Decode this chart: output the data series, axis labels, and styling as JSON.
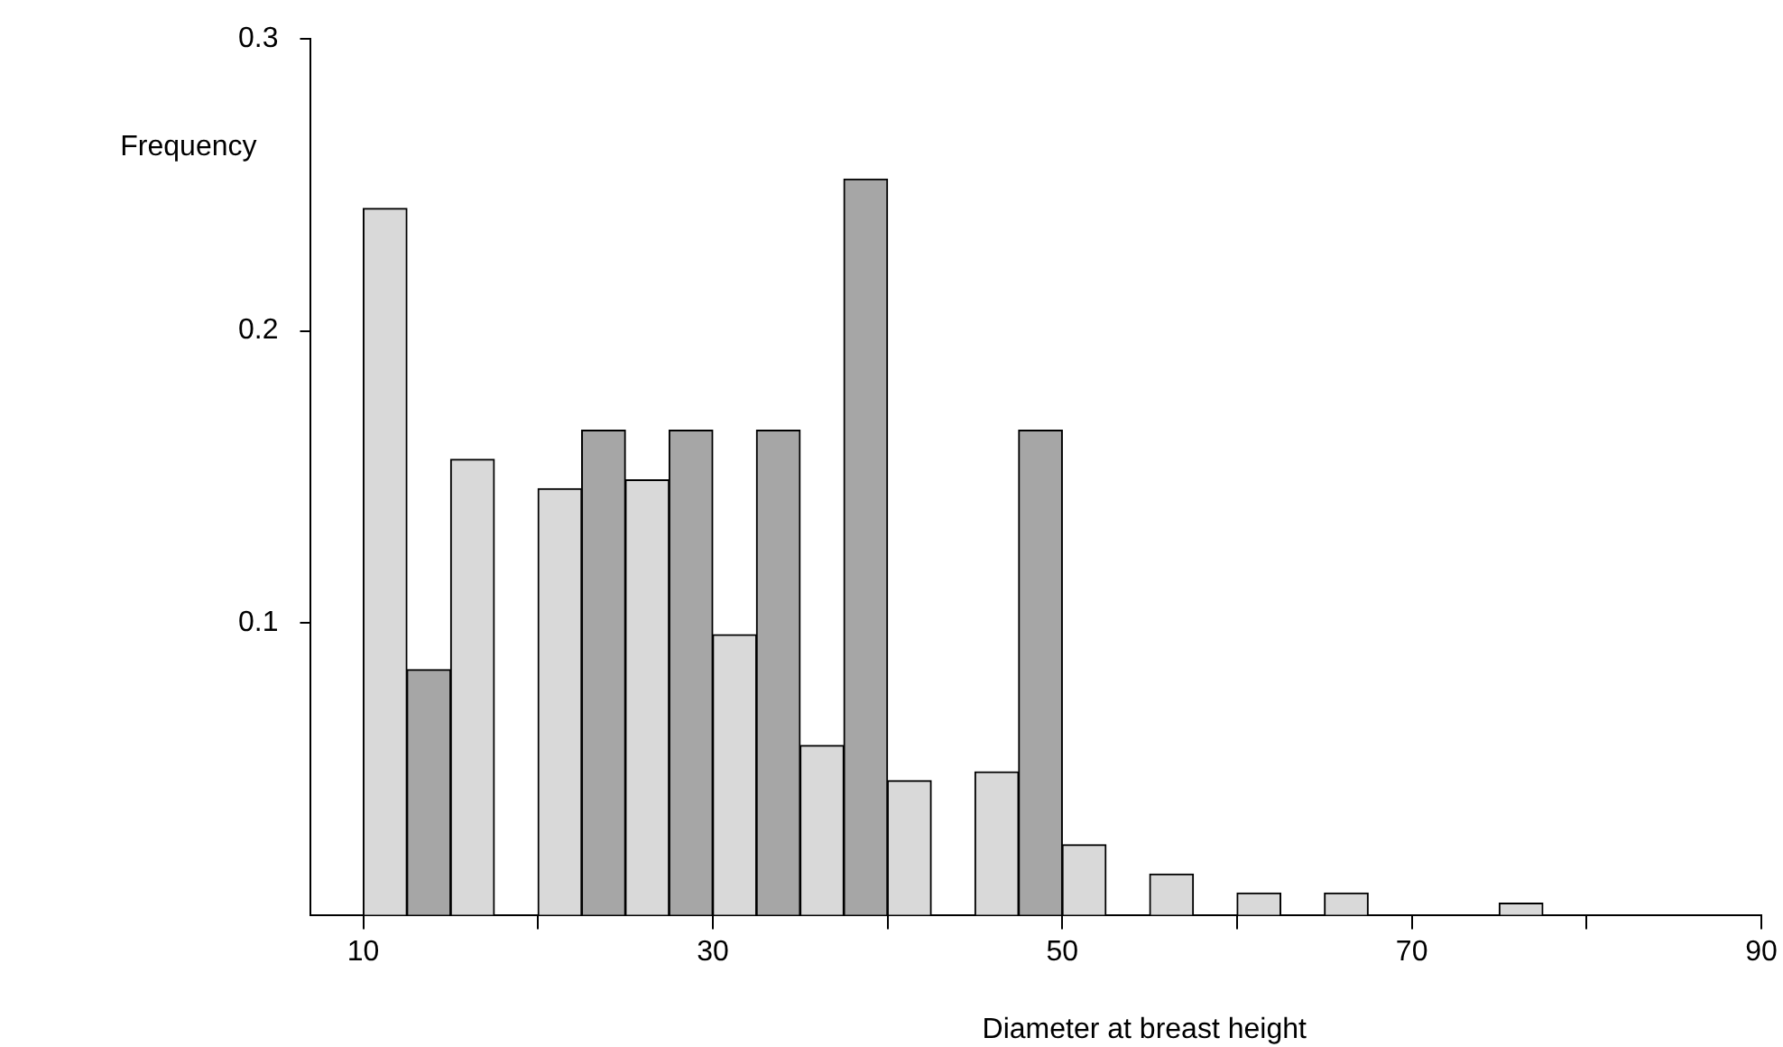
{
  "chart_data": {
    "type": "bar",
    "xlabel": "Diameter at breast height",
    "ylabel": "Frequency",
    "series": [
      {
        "color": "#d9d9d9",
        "x": [
          11.25,
          16.25,
          21.25,
          26.25,
          31.25,
          36.25,
          41.25,
          46.25,
          51.25,
          56.25,
          61.25,
          66.25,
          76.25
        ],
        "values": [
          0.242,
          0.156,
          0.146,
          0.149,
          0.096,
          0.058,
          0.046,
          0.049,
          0.024,
          0.014,
          0.0075,
          0.0075,
          0.004
        ]
      },
      {
        "color": "#a6a6a6",
        "x": [
          13.75,
          23.75,
          28.75,
          33.75,
          38.75,
          48.75
        ],
        "values": [
          0.084,
          0.166,
          0.166,
          0.166,
          0.252,
          0.166
        ]
      }
    ],
    "xlim": [
      7,
      90
    ],
    "xticks": [
      10,
      {
        "value": 20,
        "label": null
      },
      30,
      {
        "value": 40,
        "label": null
      },
      50,
      {
        "value": 60,
        "label": null
      },
      70,
      {
        "value": 80,
        "label": null
      },
      90
    ],
    "ylim": [
      0,
      0.3
    ],
    "yticks": [
      0.1,
      0.2,
      0.3
    ],
    "grid": false,
    "legend": false
  }
}
